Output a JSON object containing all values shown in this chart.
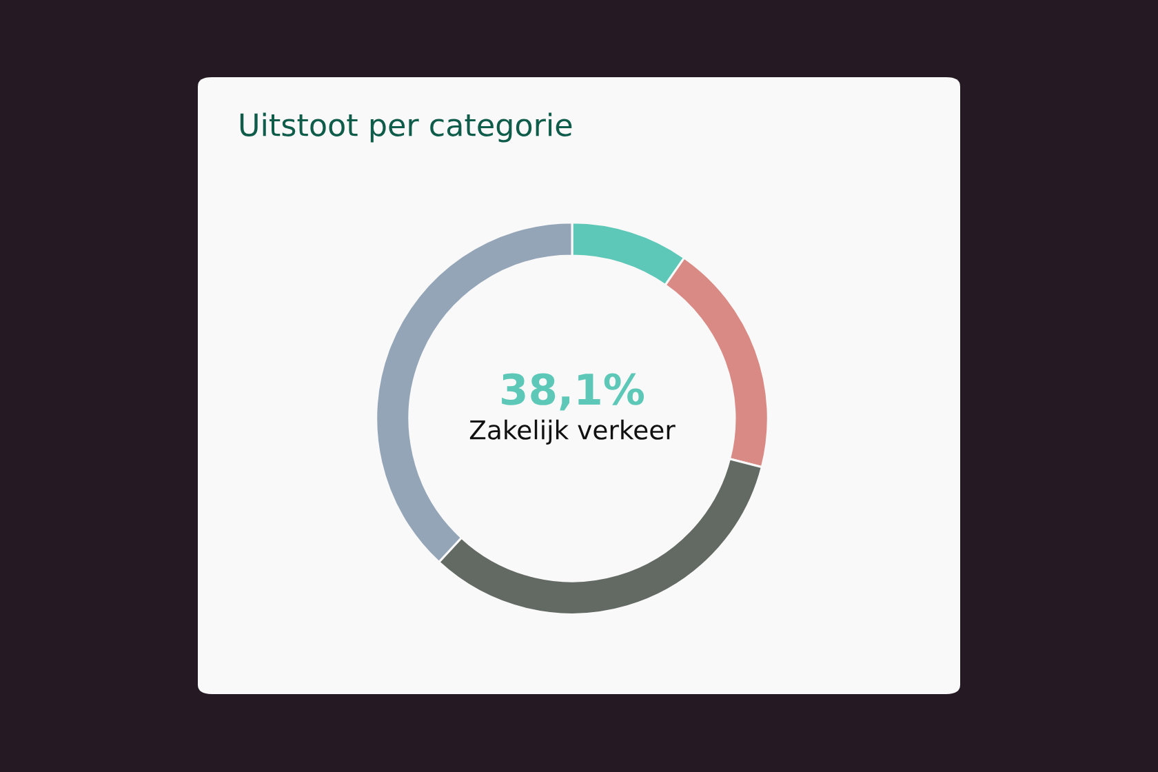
{
  "chart_data": {
    "type": "donut",
    "title": "Uitstoot per categorie",
    "categories": [
      null,
      null,
      null,
      "Zakelijk verkeer"
    ],
    "values": [
      9.7,
      19.3,
      32.9,
      38.1
    ],
    "colors": [
      "#5ec8b8",
      "#d98a84",
      "#636963",
      "#94a5b8"
    ],
    "value_labels": [
      null,
      null,
      null,
      "38,1%"
    ]
  }
}
